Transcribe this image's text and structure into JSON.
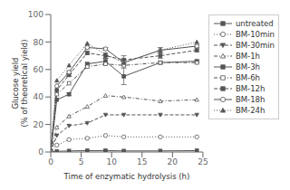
{
  "chart_data": {
    "type": "line",
    "title": "",
    "xlabel": "Time of enzymatic hydrolysis (h)",
    "ylabel": "Glucose yield\n(% of theoretical yield)",
    "xlim": [
      0,
      25
    ],
    "ylim": [
      0,
      100
    ],
    "xticks": [
      0,
      5,
      10,
      15,
      20,
      25
    ],
    "yticks": [
      0,
      20,
      40,
      60,
      80,
      100
    ],
    "grid": false,
    "legend": "right",
    "x": [
      0,
      1,
      3,
      6,
      9,
      12,
      18,
      24
    ],
    "series": [
      {
        "name": "untreated",
        "color": "#555555",
        "marker": "square",
        "line_style": "solid",
        "values": [
          0,
          0.5,
          0.8,
          1.0,
          1.0,
          0.8,
          0.8,
          1.0
        ]
      },
      {
        "name": "BM-10min",
        "color": "#555555",
        "marker": "circle-open",
        "line_style": "dotted",
        "values": [
          0,
          5,
          9,
          10,
          12,
          11,
          11,
          11
        ]
      },
      {
        "name": "BM-30min",
        "color": "#555555",
        "marker": "triangle-down",
        "line_style": "dashed",
        "values": [
          0,
          12,
          19,
          21,
          27,
          27,
          27,
          27
        ]
      },
      {
        "name": "BM-1h",
        "color": "#555555",
        "marker": "triangle-up-open",
        "line_style": "dashdot",
        "values": [
          0,
          18,
          26,
          33,
          41,
          40,
          37,
          38
        ]
      },
      {
        "name": "BM-3h",
        "color": "#555555",
        "marker": "square",
        "line_style": "solid",
        "values": [
          0,
          38,
          42,
          64,
          66,
          55,
          65,
          66
        ],
        "errors": [
          0,
          0,
          1,
          1,
          2,
          6,
          1,
          1
        ]
      },
      {
        "name": "BM-6h",
        "color": "#555555",
        "marker": "square-open",
        "line_style": "dashdot",
        "values": [
          0,
          42,
          50,
          62,
          64,
          63,
          65,
          65
        ]
      },
      {
        "name": "BM-12h",
        "color": "#555555",
        "marker": "square",
        "line_style": "dashed",
        "values": [
          0,
          45,
          56,
          72,
          70,
          67,
          70,
          74
        ],
        "errors": [
          0,
          0,
          1,
          1,
          2,
          3,
          2,
          1
        ]
      },
      {
        "name": "BM-18h",
        "color": "#555555",
        "marker": "circle-open",
        "line_style": "solid",
        "values": [
          0,
          48,
          58,
          76,
          75,
          65,
          74,
          77
        ],
        "errors": [
          0,
          0,
          1,
          1,
          1,
          2,
          2,
          1
        ]
      },
      {
        "name": "BM-24h",
        "color": "#555555",
        "marker": "triangle-up",
        "line_style": "dotted",
        "values": [
          0,
          52,
          63,
          79,
          71,
          65,
          74,
          80
        ]
      }
    ]
  }
}
